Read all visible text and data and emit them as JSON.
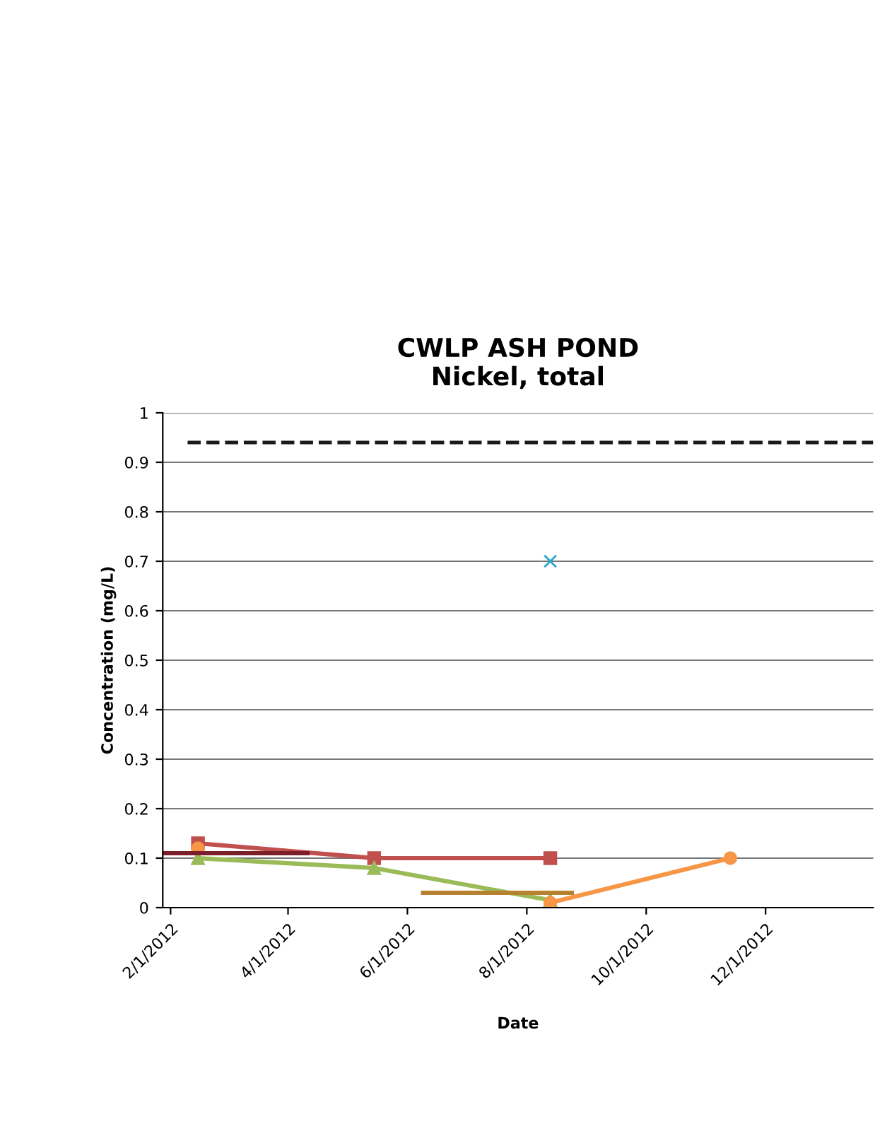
{
  "chart_data": {
    "type": "line",
    "title": "CWLP ASH POND\nNickel, total",
    "xlabel": "Date",
    "ylabel": "Concentration (mg/L)",
    "x": [
      "2012-02-15",
      "2012-05-15",
      "2012-08-13",
      "2012-11-13"
    ],
    "series": [
      {
        "color": "#2aa7c9",
        "marker": "cross",
        "values": [
          null,
          null,
          0.7,
          null
        ]
      },
      {
        "color": "#c0504d",
        "marker": "square",
        "values": [
          0.13,
          0.1,
          0.1,
          null
        ]
      },
      {
        "color": "#9bbb59",
        "marker": "triangle",
        "values": [
          0.1,
          0.08,
          0.015,
          null
        ]
      },
      {
        "color": "#f79646",
        "marker": "circle",
        "values": [
          0.12,
          null,
          0.01,
          0.1
        ]
      },
      {
        "color": "#7b1f2a",
        "marker": "none",
        "x": [
          "2012-01-28",
          "2012-04-11"
        ],
        "values": [
          0.11,
          0.11
        ]
      },
      {
        "color": "#b7822f",
        "marker": "none",
        "x": [
          "2012-06-09",
          "2012-08-24"
        ],
        "values": [
          0.03,
          0.03
        ]
      }
    ],
    "ref_lines": [
      {
        "axis": "y",
        "value": 0.94,
        "label": null,
        "color": "#1a1a1a",
        "line_style": "dashed"
      }
    ],
    "xlim": [
      "2012-01-28",
      "2013-01-25"
    ],
    "xticks": [
      {
        "value": "2012-02-01",
        "label": "2/1/2012"
      },
      {
        "value": "2012-04-01",
        "label": "4/1/2012"
      },
      {
        "value": "2012-06-01",
        "label": "6/1/2012"
      },
      {
        "value": "2012-08-01",
        "label": "8/1/2012"
      },
      {
        "value": "2012-10-01",
        "label": "10/1/2012"
      },
      {
        "value": "2012-12-01",
        "label": "12/1/2012"
      }
    ],
    "ylim": [
      0,
      1
    ],
    "yticks": [
      0,
      0.1,
      0.2,
      0.3,
      0.4,
      0.5,
      0.6,
      0.7,
      0.8,
      0.9,
      1
    ],
    "grid": "y",
    "legend": false
  }
}
